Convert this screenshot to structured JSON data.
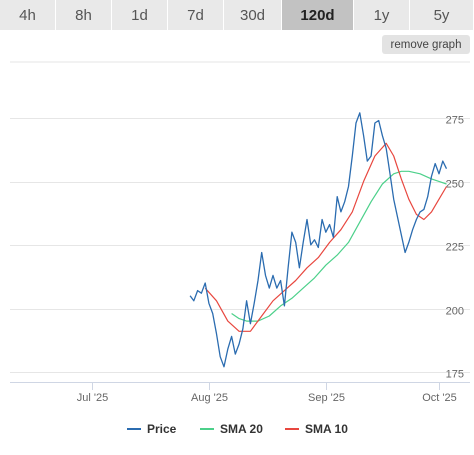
{
  "tabs": [
    {
      "label": "4h"
    },
    {
      "label": "8h"
    },
    {
      "label": "1d"
    },
    {
      "label": "7d"
    },
    {
      "label": "30d"
    },
    {
      "label": "120d",
      "active": true
    },
    {
      "label": "1y"
    },
    {
      "label": "5y"
    }
  ],
  "remove_graph_label": "remove graph",
  "colors": {
    "price": "#2b6cb0",
    "sma20": "#4cd08a",
    "sma10": "#e8473f",
    "grid": "#e6e6e6",
    "tab_active": "#c2c2c2",
    "tab": "#e9e9e9"
  },
  "chart_data": {
    "type": "line",
    "title": "",
    "xlabel": "",
    "ylabel": "",
    "ylim": [
      175,
      285
    ],
    "x_ticks": [
      "Jul '25",
      "Aug '25",
      "Sep '25",
      "Oct '25"
    ],
    "y_ticks": [
      175,
      200,
      225,
      250,
      275
    ],
    "legend_position": "bottom",
    "series": [
      {
        "name": "Price",
        "points": [
          [
            "2025-07-27",
            207
          ],
          [
            "2025-07-28",
            205
          ],
          [
            "2025-07-29",
            209
          ],
          [
            "2025-07-30",
            208
          ],
          [
            "2025-07-31",
            212
          ],
          [
            "2025-08-01",
            204
          ],
          [
            "2025-08-02",
            200
          ],
          [
            "2025-08-03",
            192
          ],
          [
            "2025-08-04",
            183
          ],
          [
            "2025-08-05",
            179
          ],
          [
            "2025-08-06",
            186
          ],
          [
            "2025-08-07",
            191
          ],
          [
            "2025-08-08",
            184
          ],
          [
            "2025-08-09",
            188
          ],
          [
            "2025-08-10",
            194
          ],
          [
            "2025-08-11",
            205
          ],
          [
            "2025-08-12",
            196
          ],
          [
            "2025-08-13",
            204
          ],
          [
            "2025-08-14",
            213
          ],
          [
            "2025-08-15",
            224
          ],
          [
            "2025-08-16",
            215
          ],
          [
            "2025-08-17",
            210
          ],
          [
            "2025-08-18",
            215
          ],
          [
            "2025-08-19",
            210
          ],
          [
            "2025-08-20",
            213
          ],
          [
            "2025-08-21",
            203
          ],
          [
            "2025-08-22",
            218
          ],
          [
            "2025-08-23",
            232
          ],
          [
            "2025-08-24",
            228
          ],
          [
            "2025-08-25",
            218
          ],
          [
            "2025-08-26",
            228
          ],
          [
            "2025-08-27",
            237
          ],
          [
            "2025-08-28",
            227
          ],
          [
            "2025-08-29",
            229
          ],
          [
            "2025-08-30",
            226
          ],
          [
            "2025-08-31",
            237
          ],
          [
            "2025-09-01",
            232
          ],
          [
            "2025-09-02",
            235
          ],
          [
            "2025-09-03",
            230
          ],
          [
            "2025-09-04",
            246
          ],
          [
            "2025-09-05",
            240
          ],
          [
            "2025-09-06",
            244
          ],
          [
            "2025-09-07",
            250
          ],
          [
            "2025-09-08",
            262
          ],
          [
            "2025-09-09",
            275
          ],
          [
            "2025-09-10",
            279
          ],
          [
            "2025-09-11",
            270
          ],
          [
            "2025-09-12",
            260
          ],
          [
            "2025-09-13",
            262
          ],
          [
            "2025-09-14",
            275
          ],
          [
            "2025-09-15",
            276
          ],
          [
            "2025-09-16",
            270
          ],
          [
            "2025-09-17",
            265
          ],
          [
            "2025-09-18",
            255
          ],
          [
            "2025-09-19",
            245
          ],
          [
            "2025-09-20",
            238
          ],
          [
            "2025-09-21",
            231
          ],
          [
            "2025-09-22",
            224
          ],
          [
            "2025-09-23",
            228
          ],
          [
            "2025-09-24",
            233
          ],
          [
            "2025-09-25",
            237
          ],
          [
            "2025-09-26",
            240
          ],
          [
            "2025-09-27",
            241
          ],
          [
            "2025-09-28",
            246
          ],
          [
            "2025-09-29",
            254
          ],
          [
            "2025-09-30",
            259
          ],
          [
            "2025-10-01",
            255
          ],
          [
            "2025-10-02",
            260
          ],
          [
            "2025-10-03",
            257
          ]
        ]
      },
      {
        "name": "SMA 20",
        "points": [
          [
            "2025-08-07",
            200
          ],
          [
            "2025-08-09",
            198
          ],
          [
            "2025-08-11",
            197
          ],
          [
            "2025-08-14",
            197
          ],
          [
            "2025-08-17",
            199
          ],
          [
            "2025-08-20",
            203
          ],
          [
            "2025-08-23",
            206
          ],
          [
            "2025-08-26",
            210
          ],
          [
            "2025-08-29",
            214
          ],
          [
            "2025-09-01",
            219
          ],
          [
            "2025-09-04",
            223
          ],
          [
            "2025-09-07",
            228
          ],
          [
            "2025-09-10",
            236
          ],
          [
            "2025-09-13",
            244
          ],
          [
            "2025-09-16",
            251
          ],
          [
            "2025-09-19",
            255
          ],
          [
            "2025-09-21",
            256
          ],
          [
            "2025-09-23",
            256
          ],
          [
            "2025-09-26",
            255
          ],
          [
            "2025-09-29",
            253
          ],
          [
            "2025-10-01",
            252
          ],
          [
            "2025-10-03",
            251
          ]
        ]
      },
      {
        "name": "SMA 10",
        "points": [
          [
            "2025-07-31",
            210
          ],
          [
            "2025-08-03",
            205
          ],
          [
            "2025-08-06",
            197
          ],
          [
            "2025-08-09",
            193
          ],
          [
            "2025-08-12",
            193
          ],
          [
            "2025-08-15",
            199
          ],
          [
            "2025-08-18",
            205
          ],
          [
            "2025-08-21",
            209
          ],
          [
            "2025-08-24",
            213
          ],
          [
            "2025-08-27",
            218
          ],
          [
            "2025-08-30",
            222
          ],
          [
            "2025-09-02",
            228
          ],
          [
            "2025-09-05",
            233
          ],
          [
            "2025-09-08",
            240
          ],
          [
            "2025-09-11",
            252
          ],
          [
            "2025-09-14",
            262
          ],
          [
            "2025-09-17",
            267
          ],
          [
            "2025-09-19",
            262
          ],
          [
            "2025-09-21",
            253
          ],
          [
            "2025-09-23",
            245
          ],
          [
            "2025-09-25",
            239
          ],
          [
            "2025-09-27",
            237
          ],
          [
            "2025-09-29",
            240
          ],
          [
            "2025-10-01",
            245
          ],
          [
            "2025-10-03",
            250
          ]
        ]
      }
    ]
  }
}
